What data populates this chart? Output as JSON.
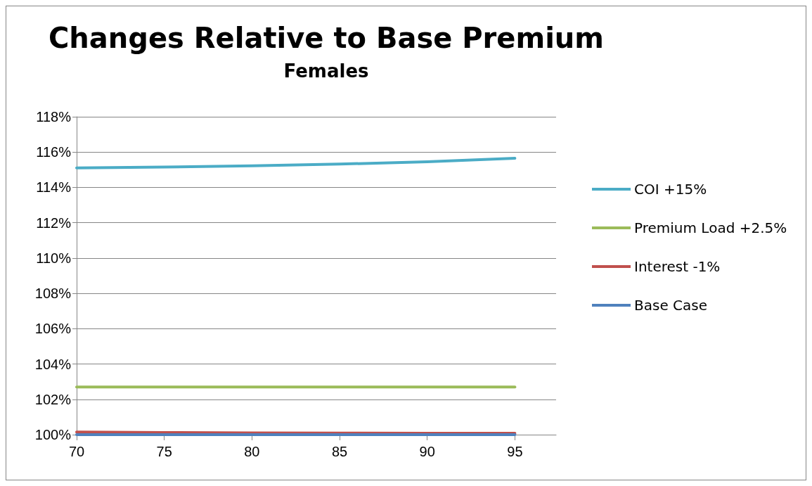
{
  "chart_data": {
    "type": "line",
    "title": "Changes Relative to Base Premium",
    "subtitle": "Females",
    "x": [
      70,
      75,
      80,
      85,
      90,
      95
    ],
    "xlim": [
      70,
      97.35
    ],
    "xticks": [
      70,
      75,
      80,
      85,
      90,
      95
    ],
    "ylim": [
      100,
      118
    ],
    "yticks": [
      {
        "value": 100,
        "label": "100%"
      },
      {
        "value": 102,
        "label": "102%"
      },
      {
        "value": 104,
        "label": "104%"
      },
      {
        "value": 106,
        "label": "106%"
      },
      {
        "value": 108,
        "label": "108%"
      },
      {
        "value": 110,
        "label": "110%"
      },
      {
        "value": 112,
        "label": "112%"
      },
      {
        "value": 114,
        "label": "114%"
      },
      {
        "value": 116,
        "label": "116%"
      },
      {
        "value": 118,
        "label": "118%"
      }
    ],
    "series": [
      {
        "name": "COI +15%",
        "color": "#4bacc6",
        "values": [
          115.1,
          115.15,
          115.22,
          115.32,
          115.45,
          115.65
        ]
      },
      {
        "name": "Premium Load +2.5%",
        "color": "#9bbb59",
        "values": [
          102.7,
          102.7,
          102.7,
          102.7,
          102.7,
          102.7
        ]
      },
      {
        "name": "Interest -1%",
        "color": "#c0504d",
        "values": [
          100.15,
          100.12,
          100.1,
          100.09,
          100.08,
          100.08
        ]
      },
      {
        "name": "Base Case",
        "color": "#4f81bd",
        "values": [
          100,
          100,
          100,
          100,
          100,
          100
        ]
      }
    ],
    "grid": "y",
    "legend": "right",
    "marker": "none",
    "line_style": "solid"
  }
}
